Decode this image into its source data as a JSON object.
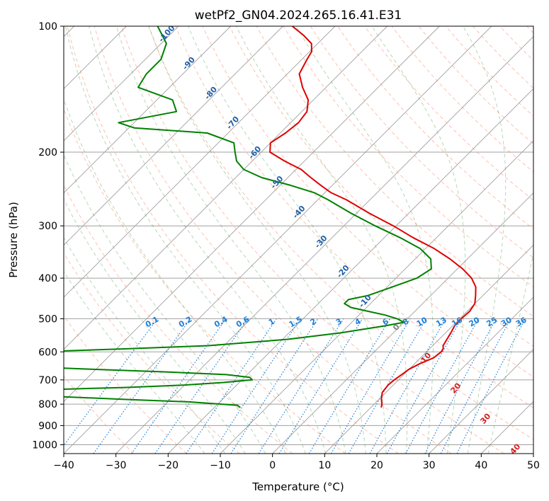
{
  "chart_data": {
    "type": "line",
    "title": "wetPf2_GN04.2024.265.16.41.E31",
    "xlabel": "Temperature (°C)",
    "ylabel": "Pressure (hPa)",
    "xlim": [
      -40,
      50
    ],
    "ylim": [
      1050,
      100
    ],
    "y_scale": "log",
    "grid": true,
    "x_ticks": [
      "−40",
      "−30",
      "−20",
      "−10",
      "0",
      "10",
      "20",
      "30",
      "40",
      "50"
    ],
    "y_ticks": [
      "100",
      "200",
      "300",
      "400",
      "500",
      "600",
      "700",
      "800",
      "900",
      "1000"
    ],
    "colors": {
      "temperature": "#e00000",
      "dewpoint": "#008000",
      "isotherm": "#a0a0a0",
      "dry_adiabat": "#ff8c69",
      "moist_adiabat": "#2e8b2e",
      "mixing_ratio": "#1e7fd8",
      "wetbulb_label_cold": "#1f5fa8",
      "wetbulb_label_warm": "#d02020",
      "wetbulb_label_zero": "#808080"
    },
    "series": [
      {
        "key": "temperature",
        "pressure": [
          815,
          800,
          780,
          750,
          720,
          700,
          680,
          660,
          640,
          620,
          600,
          590,
          580,
          560,
          540,
          520,
          500,
          480,
          460,
          440,
          420,
          400,
          380,
          360,
          340,
          320,
          300,
          280,
          260,
          250,
          240,
          230,
          220,
          210,
          200,
          190,
          180,
          170,
          160,
          150,
          140,
          130,
          120,
          115,
          110,
          105,
          100
        ],
        "temperature": [
          12,
          11.5,
          10.5,
          9.3,
          9.0,
          9.2,
          9.6,
          10.0,
          11.0,
          12.5,
          12.8,
          12.6,
          12.0,
          11.5,
          11.0,
          10.4,
          10.3,
          10.5,
          10.0,
          8.6,
          7.0,
          4.5,
          1.0,
          -3.3,
          -8.3,
          -14.5,
          -20.5,
          -27.5,
          -34.5,
          -38.8,
          -42.2,
          -45.6,
          -49.0,
          -53.8,
          -58.3,
          -60.0,
          -59.0,
          -58.5,
          -59.0,
          -61.0,
          -64.5,
          -67.7,
          -69.0,
          -69.6,
          -71.2,
          -74.4,
          -78.2
        ]
      },
      {
        "key": "dewpoint",
        "pressure": [
          815,
          805,
          790,
          780,
          760,
          750,
          740,
          730,
          720,
          710,
          700,
          690,
          680,
          670,
          660,
          650,
          640,
          620,
          600,
          590,
          580,
          560,
          540,
          520,
          510,
          500,
          490,
          480,
          470,
          460,
          450,
          440,
          420,
          400,
          380,
          360,
          340,
          320,
          300,
          280,
          260,
          250,
          240,
          230,
          220,
          210,
          200,
          190,
          180,
          175,
          170,
          160,
          150,
          140,
          130,
          120,
          110,
          100
        ],
        "dewpoint": [
          -15,
          -16,
          -26,
          -38,
          -60,
          -65,
          -58,
          -41,
          -30,
          -23,
          -18,
          -19,
          -24,
          -36,
          -51,
          -66,
          -75,
          -75,
          -65,
          -48,
          -33,
          -19,
          -10,
          -3,
          0,
          -2,
          -5,
          -9,
          -13,
          -15,
          -15,
          -12,
          -9,
          -6,
          -5,
          -7,
          -11,
          -17,
          -24,
          -31,
          -38,
          -42,
          -48,
          -55,
          -60,
          -63,
          -65,
          -67,
          -74,
          -89,
          -93,
          -84,
          -87,
          -96,
          -97,
          -97,
          -99,
          -104
        ]
      }
    ],
    "mixing_ratio_labels": [
      "0.1",
      "0.2",
      "0.4",
      "0.6",
      "1",
      "1.5",
      "2",
      "3",
      "4",
      "6",
      "8",
      "10",
      "13",
      "16",
      "20",
      "25",
      "30",
      "36"
    ],
    "mixing_ratio_values": [
      0.1,
      0.2,
      0.4,
      0.6,
      1,
      1.5,
      2,
      3,
      4,
      6,
      8,
      10,
      13,
      16,
      20,
      25,
      30,
      36
    ],
    "wetbulb_adiabat_labels": [
      "-100",
      "-90",
      "-80",
      "-70",
      "-60",
      "-50",
      "-40",
      "-30",
      "-20",
      "-10",
      "0",
      "10",
      "20",
      "30",
      "40"
    ]
  }
}
